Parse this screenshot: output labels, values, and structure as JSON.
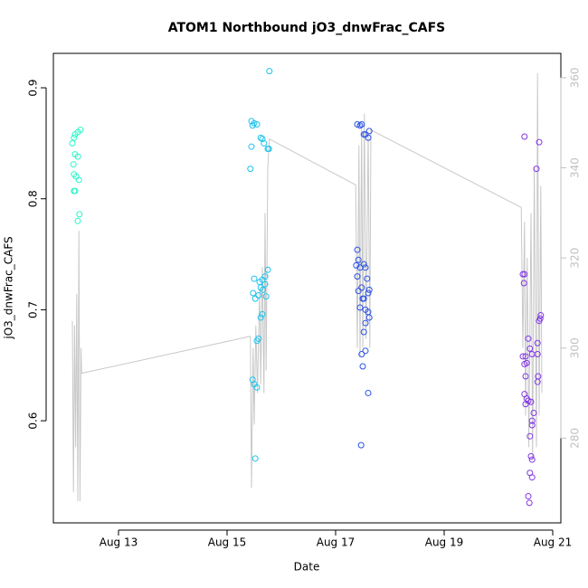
{
  "chart_data": {
    "type": "scatter",
    "title": "ATOM1 Northbound jO3_dnwFrac_CAFS",
    "xlabel": "Date",
    "ylabel": "jO3_dnwFrac_CAFS",
    "xlim": [
      11.8,
      21.15
    ],
    "xticks": [
      {
        "value": 13,
        "label": "Aug 13"
      },
      {
        "value": 15,
        "label": "Aug 15"
      },
      {
        "value": 17,
        "label": "Aug 17"
      },
      {
        "value": 19,
        "label": "Aug 19"
      },
      {
        "value": 21,
        "label": "Aug 21"
      }
    ],
    "ylim": [
      0.508,
      0.931
    ],
    "yticks": [
      0.6,
      0.7,
      0.8,
      0.9
    ],
    "y2lim": [
      261.2,
      365.4
    ],
    "y2ticks": [
      280,
      300,
      320,
      340,
      360
    ],
    "series": [
      {
        "color": "#2ef5c8",
        "x": [
          12.15,
          12.18,
          12.2,
          12.25,
          12.3,
          12.17,
          12.2,
          12.25,
          12.18,
          12.22,
          12.27,
          12.18,
          12.2,
          12.28,
          12.25
        ],
        "values": [
          0.85,
          0.855,
          0.858,
          0.86,
          0.862,
          0.831,
          0.84,
          0.838,
          0.822,
          0.82,
          0.817,
          0.807,
          0.807,
          0.786,
          0.78
        ]
      },
      {
        "color": "#1ec3ee",
        "x": [
          15.45,
          15.47,
          15.5,
          15.55,
          15.45,
          15.43,
          15.62,
          15.65,
          15.68,
          15.75,
          15.77,
          15.78,
          15.5,
          15.48,
          15.52,
          15.6,
          15.62,
          15.65,
          15.7,
          15.75,
          15.72,
          15.58,
          15.62,
          15.65,
          15.55,
          15.58,
          15.47,
          15.5,
          15.55,
          15.52,
          15.66,
          15.7
        ],
        "values": [
          0.87,
          0.866,
          0.868,
          0.867,
          0.847,
          0.827,
          0.855,
          0.854,
          0.85,
          0.845,
          0.845,
          0.915,
          0.728,
          0.715,
          0.71,
          0.725,
          0.72,
          0.727,
          0.73,
          0.736,
          0.712,
          0.713,
          0.693,
          0.696,
          0.672,
          0.674,
          0.637,
          0.633,
          0.63,
          0.566,
          0.718,
          0.723
        ]
      },
      {
        "color": "#2a52e6",
        "x": [
          17.4,
          17.45,
          17.48,
          17.52,
          17.55,
          17.6,
          17.62,
          17.4,
          17.42,
          17.38,
          17.45,
          17.52,
          17.55,
          17.4,
          17.48,
          17.42,
          17.58,
          17.6,
          17.62,
          17.5,
          17.52,
          17.45,
          17.55,
          17.6,
          17.62,
          17.55,
          17.52,
          17.48,
          17.55,
          17.5,
          17.6,
          17.47
        ],
        "values": [
          0.867,
          0.866,
          0.867,
          0.858,
          0.858,
          0.855,
          0.861,
          0.754,
          0.745,
          0.74,
          0.738,
          0.741,
          0.738,
          0.73,
          0.72,
          0.717,
          0.728,
          0.715,
          0.718,
          0.71,
          0.71,
          0.702,
          0.7,
          0.698,
          0.693,
          0.688,
          0.68,
          0.66,
          0.663,
          0.649,
          0.625,
          0.578
        ]
      },
      {
        "color": "#8236e6",
        "x": [
          20.48,
          20.7,
          20.75,
          20.45,
          20.48,
          20.47,
          20.45,
          20.5,
          20.52,
          20.48,
          20.55,
          20.58,
          20.62,
          20.5,
          20.48,
          20.52,
          20.5,
          20.55,
          20.6,
          20.65,
          20.62,
          20.62,
          20.58,
          20.6,
          20.62,
          20.58,
          20.62,
          20.55,
          20.57,
          20.72,
          20.75,
          20.77,
          20.78,
          20.72,
          20.73,
          20.72
        ],
        "values": [
          0.856,
          0.827,
          0.851,
          0.732,
          0.732,
          0.724,
          0.658,
          0.658,
          0.652,
          0.651,
          0.674,
          0.665,
          0.66,
          0.64,
          0.624,
          0.62,
          0.615,
          0.618,
          0.617,
          0.607,
          0.6,
          0.596,
          0.586,
          0.568,
          0.565,
          0.553,
          0.549,
          0.532,
          0.526,
          0.67,
          0.69,
          0.692,
          0.695,
          0.635,
          0.64,
          0.66
        ]
      },
      {
        "type": "line",
        "axis": "y2",
        "color": "#c8c8c8",
        "x": [
          12.15,
          12.17,
          12.19,
          12.21,
          12.23,
          12.25,
          12.27,
          12.29,
          12.31,
          12.32,
          15.43,
          15.45,
          15.48,
          15.5,
          15.53,
          15.56,
          15.6,
          15.62,
          15.65,
          15.68,
          15.7,
          15.72,
          15.75,
          15.78,
          17.37,
          17.4,
          17.43,
          17.45,
          17.48,
          17.5,
          17.53,
          17.56,
          17.6,
          17.63,
          17.65,
          20.42,
          20.45,
          20.48,
          20.5,
          20.53,
          20.56,
          20.6,
          20.63,
          20.66,
          20.7,
          20.72,
          20.75,
          20.78,
          20.8
        ],
        "values": [
          306,
          268,
          305,
          278,
          312,
          266,
          326,
          266,
          300,
          294.4,
          302.6,
          269,
          300,
          283,
          305,
          290,
          313,
          292,
          318,
          290,
          330,
          295,
          340,
          346.4,
          336.2,
          300,
          345,
          298,
          350,
          300,
          352,
          302,
          348,
          300,
          348.4,
          331.2,
          300,
          328,
          285,
          320,
          278,
          330,
          275,
          340,
          278,
          361,
          285,
          336,
          290
        ]
      }
    ]
  }
}
